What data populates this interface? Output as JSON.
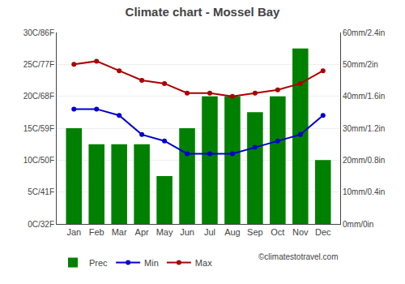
{
  "chart_data": {
    "type": "bar",
    "title": "Climate chart - Mossel Bay",
    "categories": [
      "Jan",
      "Feb",
      "Mar",
      "Apr",
      "May",
      "Jun",
      "Jul",
      "Aug",
      "Sep",
      "Oct",
      "Nov",
      "Dec"
    ],
    "series": [
      {
        "name": "Prec",
        "type": "bar",
        "axis": "y2",
        "color": "#008000",
        "values": [
          30,
          25,
          25,
          25,
          15,
          30,
          40,
          40,
          35,
          40,
          55,
          20
        ]
      },
      {
        "name": "Min",
        "type": "line",
        "color": "#0000CC",
        "marker": "circle",
        "values": [
          18,
          18,
          17,
          14,
          13,
          11,
          11,
          11,
          12,
          13,
          14,
          17
        ]
      },
      {
        "name": "Max",
        "type": "line",
        "color": "#AA0000",
        "marker": "circle",
        "values": [
          25,
          25.5,
          24,
          22.5,
          22,
          20.5,
          20.5,
          20,
          20.5,
          21,
          22,
          24
        ]
      }
    ],
    "ylim": [
      0,
      30
    ],
    "yticks": [
      {
        "value": 0,
        "label": "0C/32F"
      },
      {
        "value": 5,
        "label": "5C/41F"
      },
      {
        "value": 10,
        "label": "10C/50F"
      },
      {
        "value": 15,
        "label": "15C/59F"
      },
      {
        "value": 20,
        "label": "20C/68F"
      },
      {
        "value": 25,
        "label": "25C/77F"
      },
      {
        "value": 30,
        "label": "30C/86F"
      }
    ],
    "y2lim": [
      0,
      60
    ],
    "y2ticks": [
      {
        "value": 0,
        "label": "0mm/0in"
      },
      {
        "value": 10,
        "label": "10mm/0.4in"
      },
      {
        "value": 20,
        "label": "20mm/0.8in"
      },
      {
        "value": 30,
        "label": "30mm/1.2in"
      },
      {
        "value": 40,
        "label": "40mm/1.6in"
      },
      {
        "value": 50,
        "label": "50mm/2in"
      },
      {
        "value": 60,
        "label": "60mm/2.4in"
      }
    ],
    "grid": true,
    "legend": "bottom",
    "annotations": [
      "©climatestotravel.com"
    ]
  }
}
